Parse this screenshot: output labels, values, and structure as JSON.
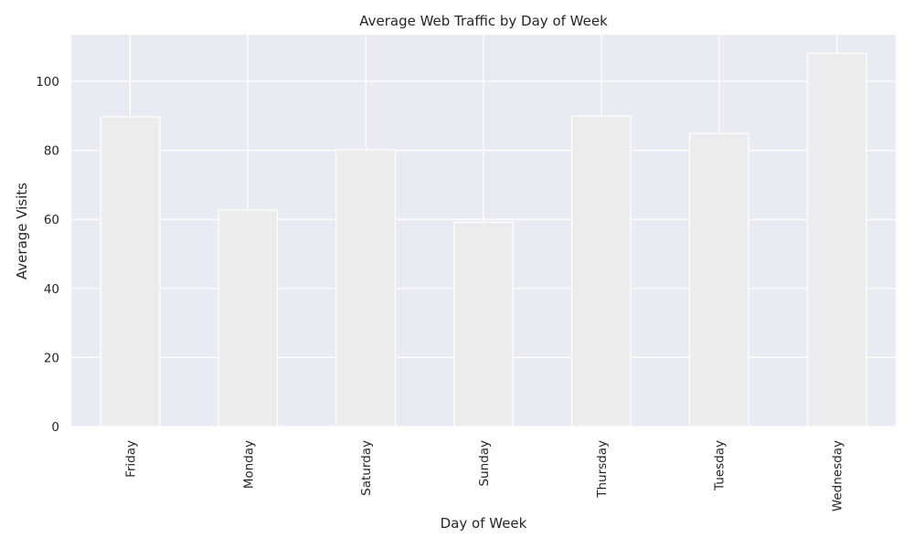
{
  "chart_data": {
    "type": "bar",
    "title": "Average Web Traffic by Day of Week",
    "xlabel": "Day of Week",
    "ylabel": "Average Visits",
    "categories": [
      "Friday",
      "Monday",
      "Saturday",
      "Sunday",
      "Thursday",
      "Tuesday",
      "Wednesday"
    ],
    "values": [
      89.7,
      62.7,
      80.1,
      59.2,
      89.9,
      84.9,
      108.1
    ],
    "ylim": [
      0,
      113.5
    ],
    "yticks": [
      0,
      20,
      40,
      60,
      80,
      100
    ],
    "grid": true,
    "legend": "none",
    "colors": {
      "plot_background": "#EAEAF2",
      "bar_fill": "#ECECEC",
      "bar_edge": "#FFFFFF",
      "grid": "#FFFFFF"
    }
  }
}
